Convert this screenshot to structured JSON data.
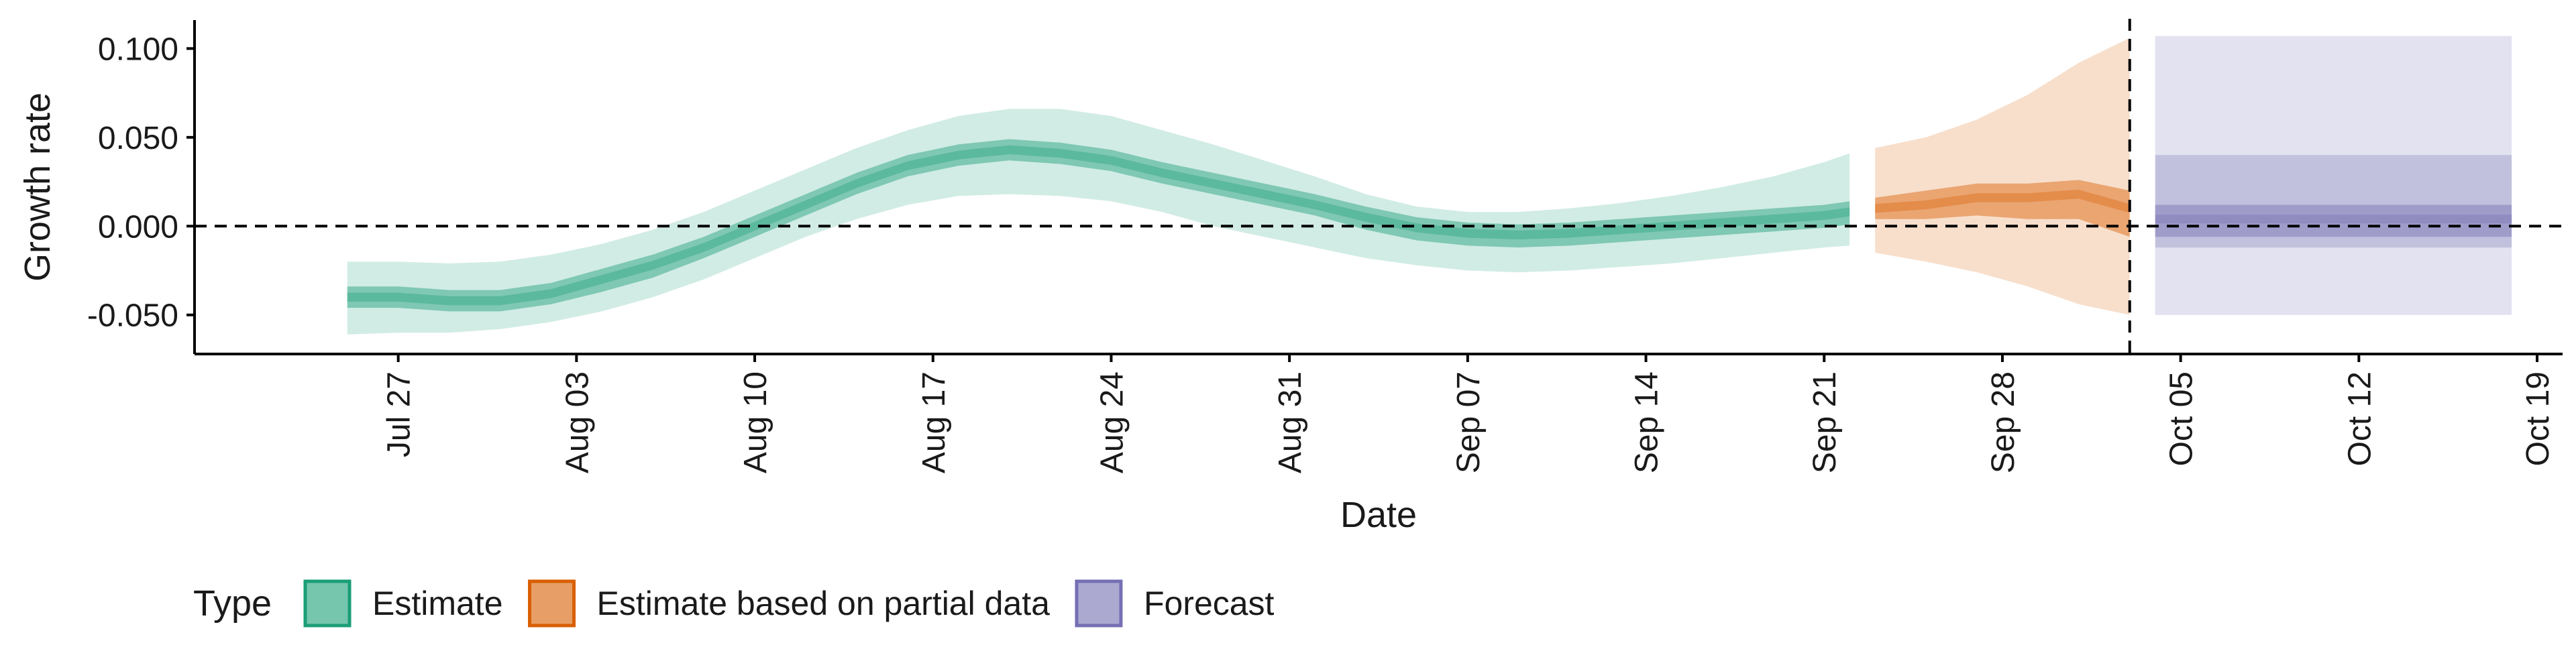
{
  "chart_data": {
    "type": "area",
    "title": "",
    "xlabel": "Date",
    "ylabel": "Growth rate",
    "x_ticks": [
      "2020-07-27",
      "2020-08-03",
      "2020-08-10",
      "2020-08-17",
      "2020-08-24",
      "2020-08-31",
      "2020-09-07",
      "2020-09-14",
      "2020-09-21",
      "2020-09-28",
      "2020-10-05",
      "2020-10-12",
      "2020-10-19"
    ],
    "x_tick_labels": [
      "Jul 27",
      "Aug 03",
      "Aug 10",
      "Aug 17",
      "Aug 24",
      "Aug 31",
      "Sep 07",
      "Sep 14",
      "Sep 21",
      "Sep 28",
      "Oct 05",
      "Oct 12",
      "Oct 19"
    ],
    "y_ticks": [
      -0.05,
      0,
      0.05,
      0.1
    ],
    "y_tick_labels": [
      "-0.050",
      "0.000",
      "0.050",
      "0.100"
    ],
    "xlim": [
      "2020-07-19",
      "2020-10-20"
    ],
    "ylim": [
      -0.072,
      0.116
    ],
    "reference_hline": 0,
    "reference_vline": "2020-10-03",
    "grid": false,
    "legend": {
      "title": "Type",
      "position": "bottom",
      "entries": [
        "Estimate",
        "Estimate based on partial data",
        "Forecast"
      ]
    },
    "colors": {
      "Estimate": "#1b9e77",
      "Estimate based on partial data": "#d95f02",
      "Forecast": "#7570b3"
    },
    "series": [
      {
        "name": "Estimate",
        "x": [
          "2020-07-25",
          "2020-07-27",
          "2020-07-29",
          "2020-07-31",
          "2020-08-02",
          "2020-08-04",
          "2020-08-06",
          "2020-08-08",
          "2020-08-10",
          "2020-08-12",
          "2020-08-14",
          "2020-08-16",
          "2020-08-18",
          "2020-08-20",
          "2020-08-22",
          "2020-08-24",
          "2020-08-26",
          "2020-08-28",
          "2020-08-30",
          "2020-09-01",
          "2020-09-03",
          "2020-09-05",
          "2020-09-07",
          "2020-09-09",
          "2020-09-11",
          "2020-09-13",
          "2020-09-15",
          "2020-09-17",
          "2020-09-19",
          "2020-09-21",
          "2020-09-22"
        ],
        "median": [
          -0.04,
          -0.04,
          -0.042,
          -0.042,
          -0.038,
          -0.03,
          -0.022,
          -0.012,
          0.0,
          0.012,
          0.024,
          0.034,
          0.04,
          0.043,
          0.041,
          0.037,
          0.03,
          0.024,
          0.018,
          0.012,
          0.005,
          -0.001,
          -0.004,
          -0.005,
          -0.004,
          -0.002,
          0.0,
          0.002,
          0.004,
          0.006,
          0.008
        ],
        "inner_lower": [
          -0.046,
          -0.046,
          -0.048,
          -0.048,
          -0.044,
          -0.037,
          -0.029,
          -0.018,
          -0.006,
          0.006,
          0.018,
          0.028,
          0.034,
          0.037,
          0.035,
          0.031,
          0.024,
          0.018,
          0.012,
          0.006,
          -0.002,
          -0.008,
          -0.011,
          -0.012,
          -0.011,
          -0.009,
          -0.007,
          -0.005,
          -0.003,
          -0.001,
          0.001
        ],
        "inner_upper": [
          -0.034,
          -0.034,
          -0.036,
          -0.036,
          -0.032,
          -0.024,
          -0.016,
          -0.006,
          0.006,
          0.018,
          0.03,
          0.04,
          0.046,
          0.049,
          0.047,
          0.043,
          0.036,
          0.03,
          0.024,
          0.018,
          0.011,
          0.005,
          0.002,
          0.001,
          0.002,
          0.004,
          0.006,
          0.008,
          0.01,
          0.012,
          0.014
        ],
        "outer_lower": [
          -0.061,
          -0.06,
          -0.06,
          -0.058,
          -0.054,
          -0.048,
          -0.04,
          -0.03,
          -0.018,
          -0.006,
          0.004,
          0.012,
          0.017,
          0.018,
          0.017,
          0.014,
          0.008,
          0.0,
          -0.006,
          -0.012,
          -0.018,
          -0.022,
          -0.025,
          -0.026,
          -0.025,
          -0.023,
          -0.021,
          -0.018,
          -0.015,
          -0.012,
          -0.011
        ],
        "outer_upper": [
          -0.02,
          -0.02,
          -0.021,
          -0.02,
          -0.016,
          -0.01,
          -0.002,
          0.008,
          0.02,
          0.032,
          0.044,
          0.054,
          0.062,
          0.066,
          0.066,
          0.062,
          0.054,
          0.046,
          0.037,
          0.028,
          0.018,
          0.011,
          0.008,
          0.008,
          0.01,
          0.013,
          0.017,
          0.022,
          0.028,
          0.036,
          0.041
        ]
      },
      {
        "name": "Estimate based on partial data",
        "x": [
          "2020-09-23",
          "2020-09-25",
          "2020-09-27",
          "2020-09-29",
          "2020-10-01",
          "2020-10-03"
        ],
        "median": [
          0.01,
          0.012,
          0.016,
          0.016,
          0.018,
          0.01
        ],
        "inner_lower": [
          0.004,
          0.004,
          0.006,
          0.004,
          0.004,
          -0.006
        ],
        "inner_upper": [
          0.016,
          0.02,
          0.024,
          0.024,
          0.026,
          0.02
        ],
        "outer_lower": [
          -0.015,
          -0.02,
          -0.026,
          -0.034,
          -0.044,
          -0.05
        ],
        "outer_upper": [
          0.044,
          0.05,
          0.06,
          0.074,
          0.092,
          0.106
        ]
      },
      {
        "name": "Forecast",
        "x": [
          "2020-10-04",
          "2020-10-18"
        ],
        "median": [
          0.004,
          0.004
        ],
        "inner_lower": [
          -0.006,
          -0.006
        ],
        "inner_upper": [
          0.012,
          0.012
        ],
        "mid_lower": [
          -0.012,
          -0.012
        ],
        "mid_upper": [
          0.04,
          0.04
        ],
        "outer_lower": [
          -0.05,
          -0.05
        ],
        "outer_upper": [
          0.107,
          0.107
        ]
      }
    ]
  }
}
